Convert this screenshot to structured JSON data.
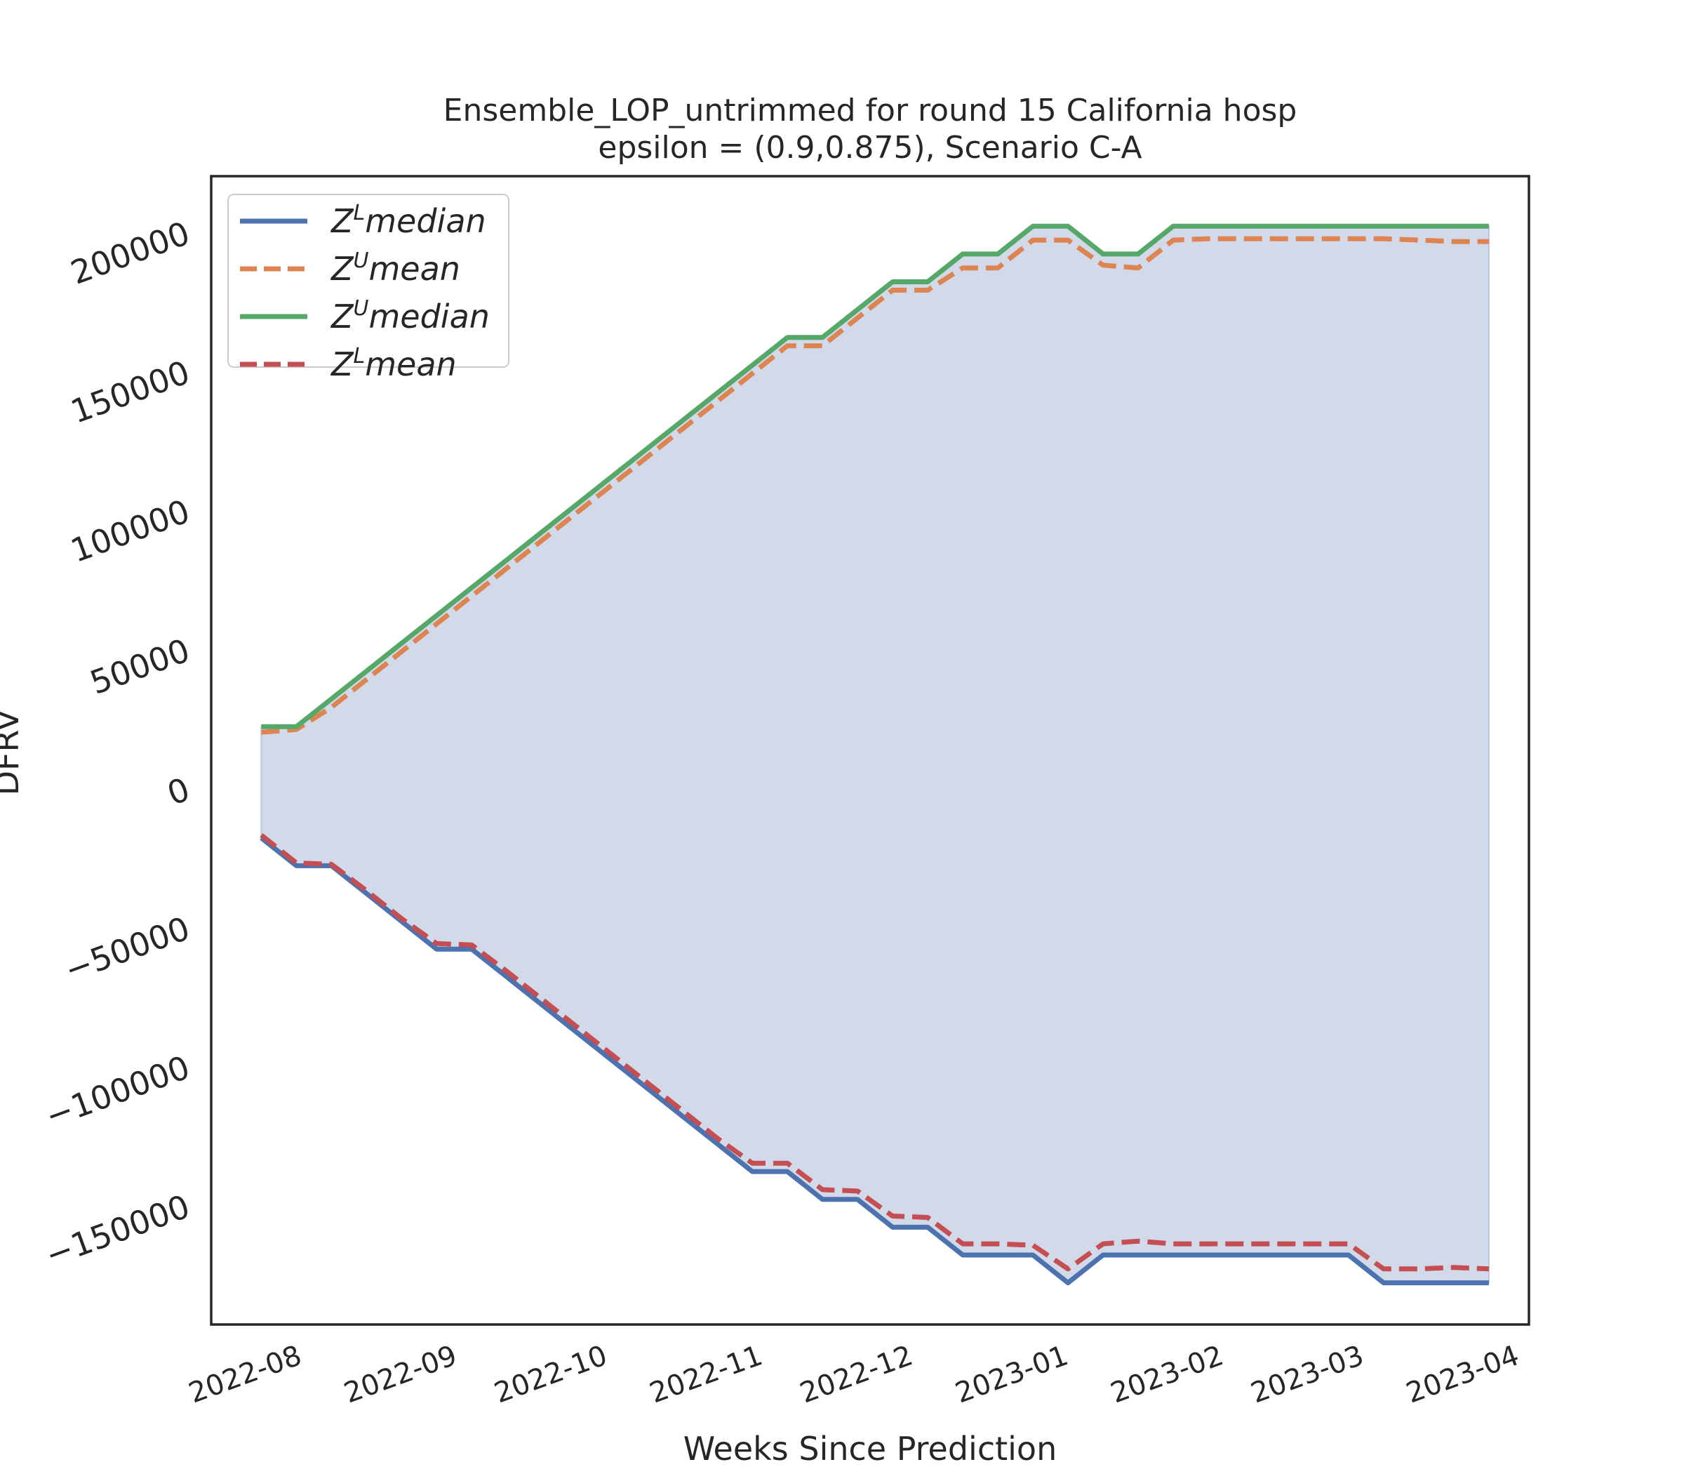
{
  "chart_data": {
    "type": "line",
    "title": "Ensemble_LOP_untrimmed for round 15 California  hosp",
    "subtitle": "epsilon = (0.9,0.875), Scenario C-A",
    "xlabel": "Weeks Since Prediction",
    "ylabel": "DFRV",
    "xlim": [
      "2022-07-15",
      "2023-04-04"
    ],
    "ylim": [
      -193000,
      220000
    ],
    "x_ticks": [
      "2022-08",
      "2022-09",
      "2022-10",
      "2022-11",
      "2022-12",
      "2023-01",
      "2023-02",
      "2023-03",
      "2023-04"
    ],
    "y_ticks": [
      200000,
      150000,
      100000,
      50000,
      0,
      -50000,
      -100000,
      -150000
    ],
    "y_tick_labels": [
      "200000",
      "150000",
      "100000",
      "50000",
      "0",
      "−50000",
      "−100000",
      "−150000"
    ],
    "grid": false,
    "legend_position": "top-left",
    "fill_between": {
      "lower": "Z^L median",
      "upper": "Z^U median",
      "color": "#d2daea"
    },
    "x": [
      "2022-07-25",
      "2022-08-01",
      "2022-08-08",
      "2022-08-15",
      "2022-08-22",
      "2022-08-29",
      "2022-09-05",
      "2022-09-12",
      "2022-09-19",
      "2022-09-26",
      "2022-10-03",
      "2022-10-10",
      "2022-10-17",
      "2022-10-24",
      "2022-10-31",
      "2022-11-07",
      "2022-11-14",
      "2022-11-21",
      "2022-11-28",
      "2022-12-05",
      "2022-12-12",
      "2022-12-19",
      "2022-12-26",
      "2023-01-02",
      "2023-01-09",
      "2023-01-16",
      "2023-01-23",
      "2023-01-30",
      "2023-02-06",
      "2023-02-13",
      "2023-02-20",
      "2023-02-27",
      "2023-03-06",
      "2023-03-13",
      "2023-03-20",
      "2023-03-27"
    ],
    "series": [
      {
        "name": "Z^L median",
        "legend_main": "Z",
        "legend_sup": "L",
        "legend_rest": "median",
        "color": "#4c72b0",
        "dash": "solid",
        "values": [
          -18000,
          -28000,
          -28000,
          -38000,
          -48000,
          -58000,
          -58000,
          -68000,
          -78000,
          -88000,
          -98000,
          -108000,
          -118000,
          -128000,
          -138000,
          -138000,
          -148000,
          -148000,
          -158000,
          -158000,
          -168000,
          -168000,
          -168000,
          -178000,
          -168000,
          -168000,
          -168000,
          -168000,
          -168000,
          -168000,
          -168000,
          -168000,
          -178000,
          -178000,
          -178000,
          -178000
        ]
      },
      {
        "name": "Z^U mean",
        "legend_main": "Z",
        "legend_sup": "U",
        "legend_rest": "mean",
        "color": "#dd8452",
        "dash": "dashed",
        "values": [
          20000,
          21000,
          29000,
          39000,
          49000,
          59000,
          69000,
          79000,
          89000,
          99000,
          109000,
          119000,
          129000,
          139000,
          149000,
          159000,
          159000,
          169000,
          179000,
          179000,
          187000,
          187000,
          197000,
          197000,
          188000,
          187000,
          197000,
          197500,
          197500,
          197500,
          197500,
          197500,
          197500,
          197000,
          196500,
          196500
        ]
      },
      {
        "name": "Z^U median",
        "legend_main": "Z",
        "legend_sup": "U",
        "legend_rest": "median",
        "color": "#55a868",
        "dash": "solid",
        "values": [
          22000,
          22000,
          32000,
          42000,
          52000,
          62000,
          72000,
          82000,
          92000,
          102000,
          112000,
          122000,
          132000,
          142000,
          152000,
          162000,
          162000,
          172000,
          182000,
          182000,
          192000,
          192000,
          202000,
          202000,
          192000,
          192000,
          202000,
          202000,
          202000,
          202000,
          202000,
          202000,
          202000,
          202000,
          202000,
          202000
        ]
      },
      {
        "name": "Z^L mean",
        "legend_main": "Z",
        "legend_sup": "L",
        "legend_rest": "mean",
        "color": "#c44e52",
        "dash": "dashed",
        "values": [
          -17000,
          -27000,
          -27500,
          -37000,
          -47000,
          -56000,
          -56500,
          -66000,
          -76000,
          -86000,
          -96000,
          -106000,
          -116000,
          -126000,
          -135000,
          -135000,
          -144500,
          -145000,
          -154000,
          -154500,
          -164000,
          -164000,
          -164500,
          -173000,
          -164000,
          -163000,
          -164000,
          -164000,
          -164000,
          -164000,
          -164000,
          -164000,
          -173000,
          -173000,
          -172500,
          -173000
        ]
      }
    ]
  }
}
